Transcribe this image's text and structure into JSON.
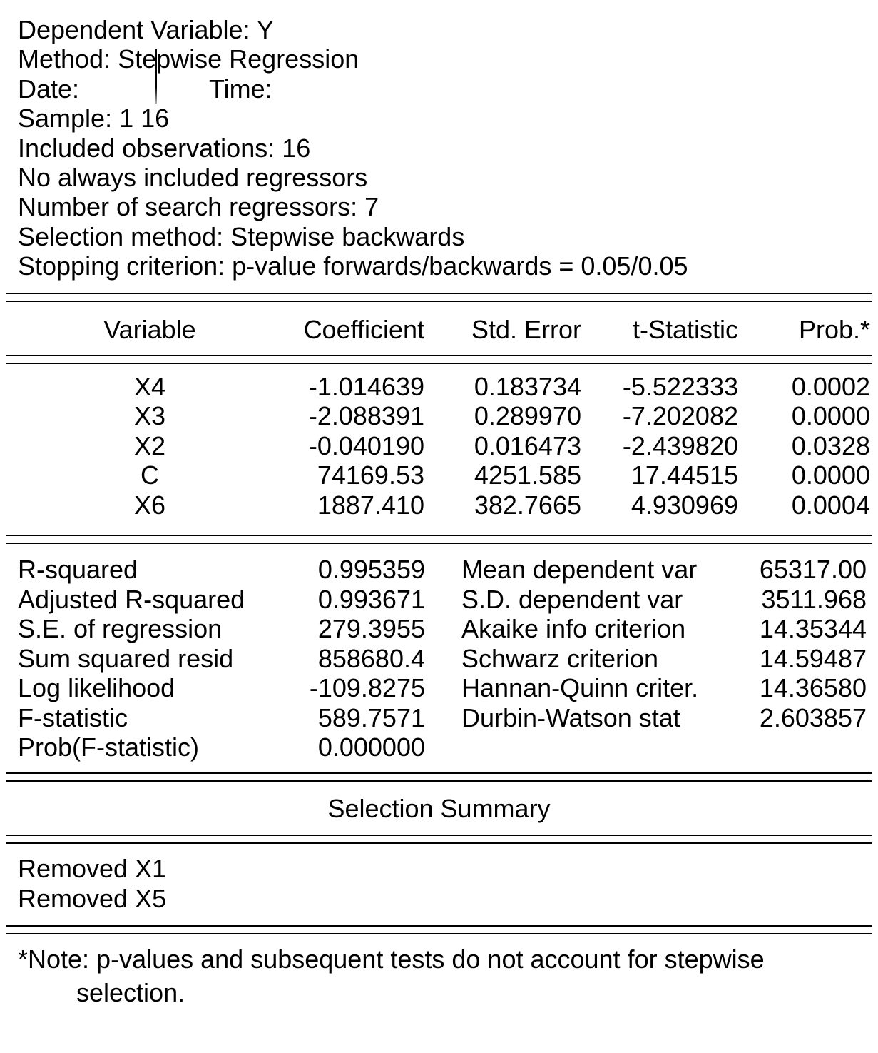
{
  "header": {
    "line_dependent": "Dependent Variable: Y",
    "line_method": "Method: Stepwise Regression",
    "date_label": "Date:",
    "time_label": "Time:",
    "line_sample": "Sample: 1 16",
    "line_observations": "Included observations: 16",
    "line_always_included": "No always included regressors",
    "line_search_regressors": "Number of search regressors: 7",
    "line_selection_method": "Selection method: Stepwise backwards",
    "line_stopping": "Stopping criterion: p-value forwards/backwards = 0.05/0.05"
  },
  "coefficients_table": {
    "columns": [
      "Variable",
      "Coefficient",
      "Std. Error",
      "t-Statistic",
      "Prob.*"
    ],
    "rows": [
      {
        "variable": "X4",
        "coefficient": "-1.014639",
        "std_error": "0.183734",
        "t_statistic": "-5.522333",
        "prob": "0.0002"
      },
      {
        "variable": "X3",
        "coefficient": "-2.088391",
        "std_error": "0.289970",
        "t_statistic": "-7.202082",
        "prob": "0.0000"
      },
      {
        "variable": "X2",
        "coefficient": "-0.040190",
        "std_error": "0.016473",
        "t_statistic": "-2.439820",
        "prob": "0.0328"
      },
      {
        "variable": "C",
        "coefficient": "74169.53",
        "std_error": "4251.585",
        "t_statistic": "17.44515",
        "prob": "0.0000"
      },
      {
        "variable": "X6",
        "coefficient": "1887.410",
        "std_error": "382.7665",
        "t_statistic": "4.930969",
        "prob": "0.0004"
      }
    ]
  },
  "summary_stats": {
    "left": [
      {
        "label": "R-squared",
        "value": "0.995359"
      },
      {
        "label": "Adjusted R-squared",
        "value": "0.993671"
      },
      {
        "label": "S.E. of regression",
        "value": "279.3955"
      },
      {
        "label": "Sum squared resid",
        "value": "858680.4"
      },
      {
        "label": "Log likelihood",
        "value": "-109.8275"
      },
      {
        "label": "F-statistic",
        "value": "589.7571"
      },
      {
        "label": "Prob(F-statistic)",
        "value": "0.000000"
      }
    ],
    "right": [
      {
        "label": "Mean dependent var",
        "value": "65317.00"
      },
      {
        "label": "S.D. dependent var",
        "value": "3511.968"
      },
      {
        "label": "Akaike info criterion",
        "value": "14.35344"
      },
      {
        "label": "Schwarz criterion",
        "value": "14.59487"
      },
      {
        "label": "Hannan-Quinn criter.",
        "value": "14.36580"
      },
      {
        "label": "Durbin-Watson stat",
        "value": "2.603857"
      }
    ]
  },
  "selection_summary": {
    "title": "Selection Summary",
    "entries": [
      "Removed X1",
      "Removed X5"
    ]
  },
  "footnote": {
    "line1": "*Note: p-values and subsequent tests do not account for stepwise",
    "line2": "selection."
  },
  "colors": {
    "text": "#000000",
    "background": "#ffffff",
    "rule": "#000000"
  }
}
